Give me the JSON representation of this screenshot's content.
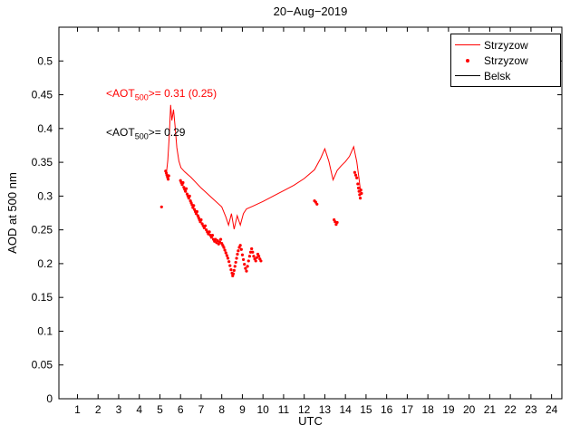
{
  "chart_data": {
    "type": "line",
    "title": "20−Aug−2019",
    "xlabel": "UTC",
    "ylabel": "AOD at 500 nm",
    "xlim": [
      0.1,
      24.5
    ],
    "ylim": [
      0,
      0.55
    ],
    "grid": false,
    "axis_color": "#000000",
    "background_color": "#ffffff",
    "xticks": [
      {
        "value": 1,
        "label": "1"
      },
      {
        "value": 2,
        "label": "2"
      },
      {
        "value": 3,
        "label": "3"
      },
      {
        "value": 4,
        "label": "4"
      },
      {
        "value": 5,
        "label": "5"
      },
      {
        "value": 6,
        "label": "6"
      },
      {
        "value": 7,
        "label": "7"
      },
      {
        "value": 8,
        "label": "8"
      },
      {
        "value": 9,
        "label": "9"
      },
      {
        "value": 10,
        "label": "10"
      },
      {
        "value": 11,
        "label": "11"
      },
      {
        "value": 12,
        "label": "12"
      },
      {
        "value": 13,
        "label": "13"
      },
      {
        "value": 14,
        "label": "14"
      },
      {
        "value": 15,
        "label": "15"
      },
      {
        "value": 16,
        "label": "16"
      },
      {
        "value": 17,
        "label": "17"
      },
      {
        "value": 18,
        "label": "18"
      },
      {
        "value": 19,
        "label": "19"
      },
      {
        "value": 20,
        "label": "20"
      },
      {
        "value": 21,
        "label": "21"
      },
      {
        "value": 22,
        "label": "22"
      },
      {
        "value": 23,
        "label": "23"
      },
      {
        "value": 24,
        "label": "24"
      }
    ],
    "yticks": [
      {
        "value": 0,
        "label": "0"
      },
      {
        "value": 0.05,
        "label": "0.05"
      },
      {
        "value": 0.1,
        "label": "0.1"
      },
      {
        "value": 0.15,
        "label": "0.15"
      },
      {
        "value": 0.2,
        "label": "0.2"
      },
      {
        "value": 0.25,
        "label": "0.25"
      },
      {
        "value": 0.3,
        "label": "0.3"
      },
      {
        "value": 0.35,
        "label": "0.35"
      },
      {
        "value": 0.4,
        "label": "0.4"
      },
      {
        "value": 0.45,
        "label": "0.45"
      },
      {
        "value": 0.5,
        "label": "0.5"
      }
    ],
    "series": [
      {
        "name": "Strzyzow",
        "style": "line",
        "color": "#ff0000",
        "points": [
          [
            5.3,
            0.33
          ],
          [
            5.38,
            0.352
          ],
          [
            5.46,
            0.392
          ],
          [
            5.52,
            0.435
          ],
          [
            5.58,
            0.412
          ],
          [
            5.66,
            0.428
          ],
          [
            5.74,
            0.402
          ],
          [
            5.82,
            0.372
          ],
          [
            5.92,
            0.352
          ],
          [
            6.02,
            0.342
          ],
          [
            6.2,
            0.336
          ],
          [
            6.5,
            0.328
          ],
          [
            7.0,
            0.312
          ],
          [
            7.5,
            0.298
          ],
          [
            8.0,
            0.284
          ],
          [
            8.2,
            0.269
          ],
          [
            8.33,
            0.257
          ],
          [
            8.47,
            0.274
          ],
          [
            8.6,
            0.251
          ],
          [
            8.75,
            0.271
          ],
          [
            8.9,
            0.257
          ],
          [
            9.05,
            0.274
          ],
          [
            9.2,
            0.281
          ],
          [
            9.5,
            0.285
          ],
          [
            10.0,
            0.292
          ],
          [
            10.5,
            0.3
          ],
          [
            11.0,
            0.308
          ],
          [
            11.5,
            0.316
          ],
          [
            12.0,
            0.326
          ],
          [
            12.5,
            0.339
          ],
          [
            12.8,
            0.356
          ],
          [
            13.0,
            0.37
          ],
          [
            13.2,
            0.351
          ],
          [
            13.4,
            0.324
          ],
          [
            13.6,
            0.338
          ],
          [
            13.8,
            0.345
          ],
          [
            14.0,
            0.351
          ],
          [
            14.2,
            0.359
          ],
          [
            14.4,
            0.373
          ],
          [
            14.55,
            0.351
          ],
          [
            14.65,
            0.328
          ],
          [
            14.75,
            0.303
          ]
        ]
      },
      {
        "name": "Strzyzow",
        "style": "scatter",
        "color": "#ff0000",
        "points": [
          [
            5.08,
            0.284
          ],
          [
            5.28,
            0.337
          ],
          [
            5.31,
            0.334
          ],
          [
            5.34,
            0.331
          ],
          [
            5.37,
            0.328
          ],
          [
            5.4,
            0.325
          ],
          [
            5.43,
            0.33
          ],
          [
            6.0,
            0.323
          ],
          [
            6.04,
            0.32
          ],
          [
            6.08,
            0.317
          ],
          [
            6.12,
            0.32
          ],
          [
            6.16,
            0.313
          ],
          [
            6.2,
            0.31
          ],
          [
            6.24,
            0.307
          ],
          [
            6.28,
            0.311
          ],
          [
            6.32,
            0.303
          ],
          [
            6.36,
            0.3
          ],
          [
            6.4,
            0.297
          ],
          [
            6.44,
            0.3
          ],
          [
            6.48,
            0.293
          ],
          [
            6.52,
            0.29
          ],
          [
            6.56,
            0.287
          ],
          [
            6.6,
            0.283
          ],
          [
            6.64,
            0.286
          ],
          [
            6.68,
            0.28
          ],
          [
            6.72,
            0.277
          ],
          [
            6.76,
            0.274
          ],
          [
            6.8,
            0.277
          ],
          [
            6.84,
            0.271
          ],
          [
            6.88,
            0.268
          ],
          [
            6.92,
            0.265
          ],
          [
            6.96,
            0.262
          ],
          [
            7.0,
            0.265
          ],
          [
            7.05,
            0.259
          ],
          [
            7.1,
            0.256
          ],
          [
            7.15,
            0.253
          ],
          [
            7.2,
            0.256
          ],
          [
            7.25,
            0.25
          ],
          [
            7.3,
            0.247
          ],
          [
            7.35,
            0.244
          ],
          [
            7.4,
            0.247
          ],
          [
            7.45,
            0.242
          ],
          [
            7.5,
            0.239
          ],
          [
            7.55,
            0.242
          ],
          [
            7.6,
            0.236
          ],
          [
            7.65,
            0.233
          ],
          [
            7.7,
            0.236
          ],
          [
            7.75,
            0.231
          ],
          [
            7.8,
            0.234
          ],
          [
            7.85,
            0.229
          ],
          [
            7.9,
            0.232
          ],
          [
            7.95,
            0.236
          ],
          [
            8.0,
            0.23
          ],
          [
            8.05,
            0.227
          ],
          [
            8.1,
            0.224
          ],
          [
            8.15,
            0.22
          ],
          [
            8.2,
            0.216
          ],
          [
            8.25,
            0.212
          ],
          [
            8.3,
            0.208
          ],
          [
            8.35,
            0.203
          ],
          [
            8.4,
            0.197
          ],
          [
            8.45,
            0.191
          ],
          [
            8.5,
            0.186
          ],
          [
            8.53,
            0.182
          ],
          [
            8.56,
            0.185
          ],
          [
            8.6,
            0.19
          ],
          [
            8.64,
            0.196
          ],
          [
            8.68,
            0.202
          ],
          [
            8.72,
            0.208
          ],
          [
            8.76,
            0.214
          ],
          [
            8.8,
            0.219
          ],
          [
            8.85,
            0.224
          ],
          [
            8.9,
            0.227
          ],
          [
            8.95,
            0.221
          ],
          [
            9.0,
            0.213
          ],
          [
            9.05,
            0.206
          ],
          [
            9.1,
            0.199
          ],
          [
            9.15,
            0.193
          ],
          [
            9.2,
            0.189
          ],
          [
            9.25,
            0.196
          ],
          [
            9.3,
            0.204
          ],
          [
            9.35,
            0.211
          ],
          [
            9.4,
            0.217
          ],
          [
            9.45,
            0.222
          ],
          [
            9.5,
            0.217
          ],
          [
            9.55,
            0.211
          ],
          [
            9.6,
            0.207
          ],
          [
            9.65,
            0.204
          ],
          [
            9.7,
            0.209
          ],
          [
            9.75,
            0.214
          ],
          [
            9.8,
            0.211
          ],
          [
            9.85,
            0.207
          ],
          [
            9.9,
            0.204
          ],
          [
            12.5,
            0.293
          ],
          [
            12.56,
            0.291
          ],
          [
            12.62,
            0.288
          ],
          [
            13.45,
            0.265
          ],
          [
            13.5,
            0.262
          ],
          [
            13.55,
            0.258
          ],
          [
            13.6,
            0.261
          ],
          [
            14.45,
            0.335
          ],
          [
            14.5,
            0.331
          ],
          [
            14.55,
            0.327
          ],
          [
            14.6,
            0.318
          ],
          [
            14.63,
            0.312
          ],
          [
            14.66,
            0.307
          ],
          [
            14.69,
            0.302
          ],
          [
            14.72,
            0.297
          ],
          [
            14.75,
            0.309
          ],
          [
            14.78,
            0.304
          ]
        ]
      },
      {
        "name": "Belsk",
        "style": "line",
        "color": "#000000",
        "points": []
      }
    ],
    "legend": {
      "position": "top-right",
      "items": [
        {
          "label": "Strzyzow",
          "style": "line",
          "color": "#ff0000"
        },
        {
          "label": "Strzyzow",
          "style": "scatter",
          "color": "#ff0000"
        },
        {
          "label": "Belsk",
          "style": "line",
          "color": "#000000"
        }
      ]
    },
    "annotations": [
      {
        "prefix": "<AOT",
        "sub": "500",
        "suffix": ">= 0.31 (0.25)",
        "color": "#ff0000"
      },
      {
        "prefix": "<AOT",
        "sub": "500",
        "suffix": ">= 0.29",
        "color": "#000000"
      }
    ]
  }
}
